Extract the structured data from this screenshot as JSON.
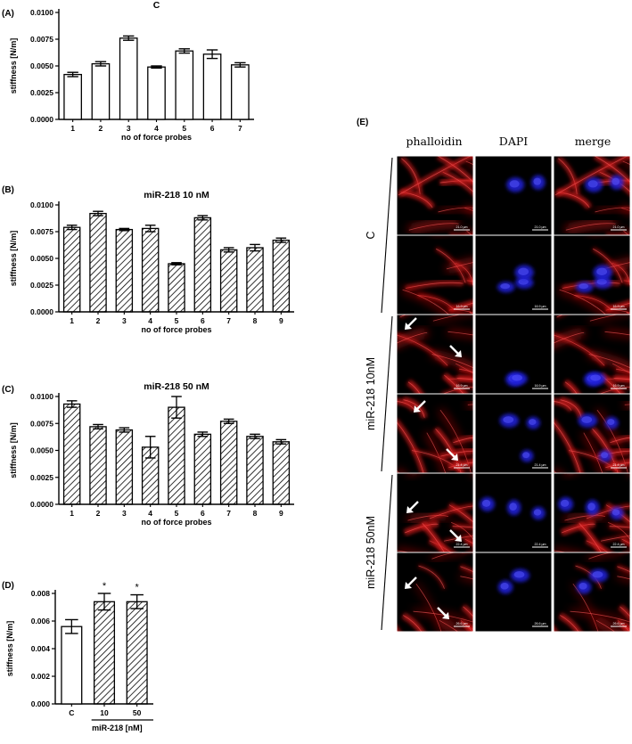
{
  "colors": {
    "axis": "#000000",
    "bar_fill": "#ffffff",
    "hatch": "#000000",
    "stain_red": "#d01818",
    "stain_blue": "#2020e0",
    "panel_bg": "#000000"
  },
  "chart_data": [
    {
      "panel_label": "(A)",
      "type": "bar",
      "title": "C",
      "xlabel": "no of force probes",
      "ylabel": "stiffness [N/m]",
      "ylim": [
        0,
        0.01
      ],
      "yticks": [
        "0.0000",
        "0.0025",
        "0.0050",
        "0.0075",
        "0.0100"
      ],
      "fill": "open",
      "categories": [
        "1",
        "2",
        "3",
        "4",
        "5",
        "6",
        "7"
      ],
      "values": [
        0.0042,
        0.0052,
        0.0076,
        0.0049,
        0.0064,
        0.0061,
        0.0051
      ],
      "errors": [
        0.0002,
        0.0002,
        0.0002,
        0.0001,
        0.0002,
        0.0004,
        0.0002
      ]
    },
    {
      "panel_label": "(B)",
      "type": "bar",
      "title": "miR-218 10 nM",
      "xlabel": "no of force probes",
      "ylabel": "stiffness [N/m]",
      "ylim": [
        0,
        0.01
      ],
      "yticks": [
        "0.0000",
        "0.0025",
        "0.0050",
        "0.0075",
        "0.0100"
      ],
      "fill": "hatched",
      "categories": [
        "1",
        "2",
        "3",
        "4",
        "5",
        "6",
        "7",
        "8",
        "9"
      ],
      "values": [
        0.0079,
        0.0092,
        0.0077,
        0.0078,
        0.0045,
        0.0088,
        0.0058,
        0.006,
        0.0067
      ],
      "errors": [
        0.0002,
        0.0002,
        0.0001,
        0.0003,
        0.0001,
        0.0002,
        0.0002,
        0.0003,
        0.0002
      ]
    },
    {
      "panel_label": "(C)",
      "type": "bar",
      "title": "miR-218 50 nM",
      "xlabel": "no of force probes",
      "ylabel": "stiffness [N/m]",
      "ylim": [
        0,
        0.01
      ],
      "yticks": [
        "0.0000",
        "0.0025",
        "0.0050",
        "0.0075",
        "0.0100"
      ],
      "fill": "hatched",
      "categories": [
        "1",
        "2",
        "3",
        "4",
        "5",
        "6",
        "7",
        "8",
        "9"
      ],
      "values": [
        0.0093,
        0.0072,
        0.0069,
        0.0053,
        0.009,
        0.0065,
        0.0077,
        0.0063,
        0.0058
      ],
      "errors": [
        0.0003,
        0.0002,
        0.0002,
        0.001,
        0.001,
        0.0002,
        0.0002,
        0.0002,
        0.0002
      ]
    },
    {
      "panel_label": "(D)",
      "type": "bar",
      "title": "",
      "xlabel": "miR-218 [nM]",
      "ylabel": "stiffness [N/m]",
      "ylim": [
        0,
        0.008
      ],
      "yticks": [
        "0.000",
        "0.002",
        "0.004",
        "0.006",
        "0.008"
      ],
      "categories": [
        "C",
        "10",
        "50"
      ],
      "values": [
        0.0056,
        0.0074,
        0.0074
      ],
      "errors": [
        0.0005,
        0.0006,
        0.0005
      ],
      "fills": [
        "open",
        "hatched",
        "hatched"
      ],
      "annotations": [
        "",
        "*",
        "*"
      ]
    }
  ],
  "microscopy": {
    "panel_label": "(E)",
    "columns": [
      "phalloidin",
      "DAPI",
      "merge"
    ],
    "groups": [
      {
        "label": "C",
        "rows": [
          0,
          1
        ]
      },
      {
        "label": "miR-218 10nM",
        "rows": [
          2,
          3
        ]
      },
      {
        "label": "miR-218 50nM",
        "rows": [
          4,
          5
        ]
      }
    ],
    "scale_bars": [
      "21.0 µm",
      "16.9 µm",
      "16.9 µm",
      "21.4 µm",
      "22.4 µm",
      "26.6 µm"
    ]
  }
}
